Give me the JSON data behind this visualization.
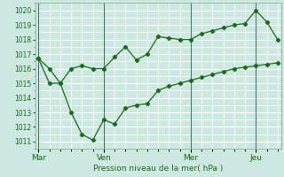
{
  "title": "Pression niveau de la mer( hPa )",
  "bg_color": "#cce8e0",
  "grid_color": "#ffffff",
  "line_color": "#1a6b1a",
  "vline_color": "#4a7a6a",
  "ylim": [
    1010.5,
    1020.5
  ],
  "yticks": [
    1011,
    1012,
    1013,
    1014,
    1015,
    1016,
    1017,
    1018,
    1019,
    1020
  ],
  "day_labels": [
    "Mar",
    "Ven",
    "Mer",
    "Jeu"
  ],
  "day_positions": [
    0,
    6,
    14,
    20
  ],
  "xlim": [
    -0.3,
    22.3
  ],
  "series1_x": [
    0,
    1,
    2,
    3,
    4,
    5,
    6,
    7,
    8,
    9,
    10,
    11,
    12,
    13,
    14,
    15,
    16,
    17,
    18,
    19,
    20,
    21,
    22
  ],
  "series1_y": [
    1016.7,
    1016.0,
    1015.0,
    1016.0,
    1016.2,
    1016.0,
    1016.0,
    1016.8,
    1017.5,
    1016.6,
    1017.0,
    1018.2,
    1018.1,
    1018.0,
    1018.0,
    1018.4,
    1018.6,
    1018.8,
    1019.0,
    1019.1,
    1020.0,
    1019.2,
    1018.0
  ],
  "series2_x": [
    0,
    1,
    2,
    3,
    4,
    5,
    6,
    7,
    8,
    9,
    10,
    11,
    12,
    13,
    14,
    15,
    16,
    17,
    18,
    19,
    20,
    21,
    22
  ],
  "series2_y": [
    1016.7,
    1015.0,
    1015.0,
    1013.0,
    1011.5,
    1011.1,
    1012.5,
    1012.2,
    1013.3,
    1013.5,
    1013.6,
    1014.5,
    1014.8,
    1015.0,
    1015.2,
    1015.4,
    1015.6,
    1015.8,
    1016.0,
    1016.1,
    1016.2,
    1016.3,
    1016.4
  ]
}
